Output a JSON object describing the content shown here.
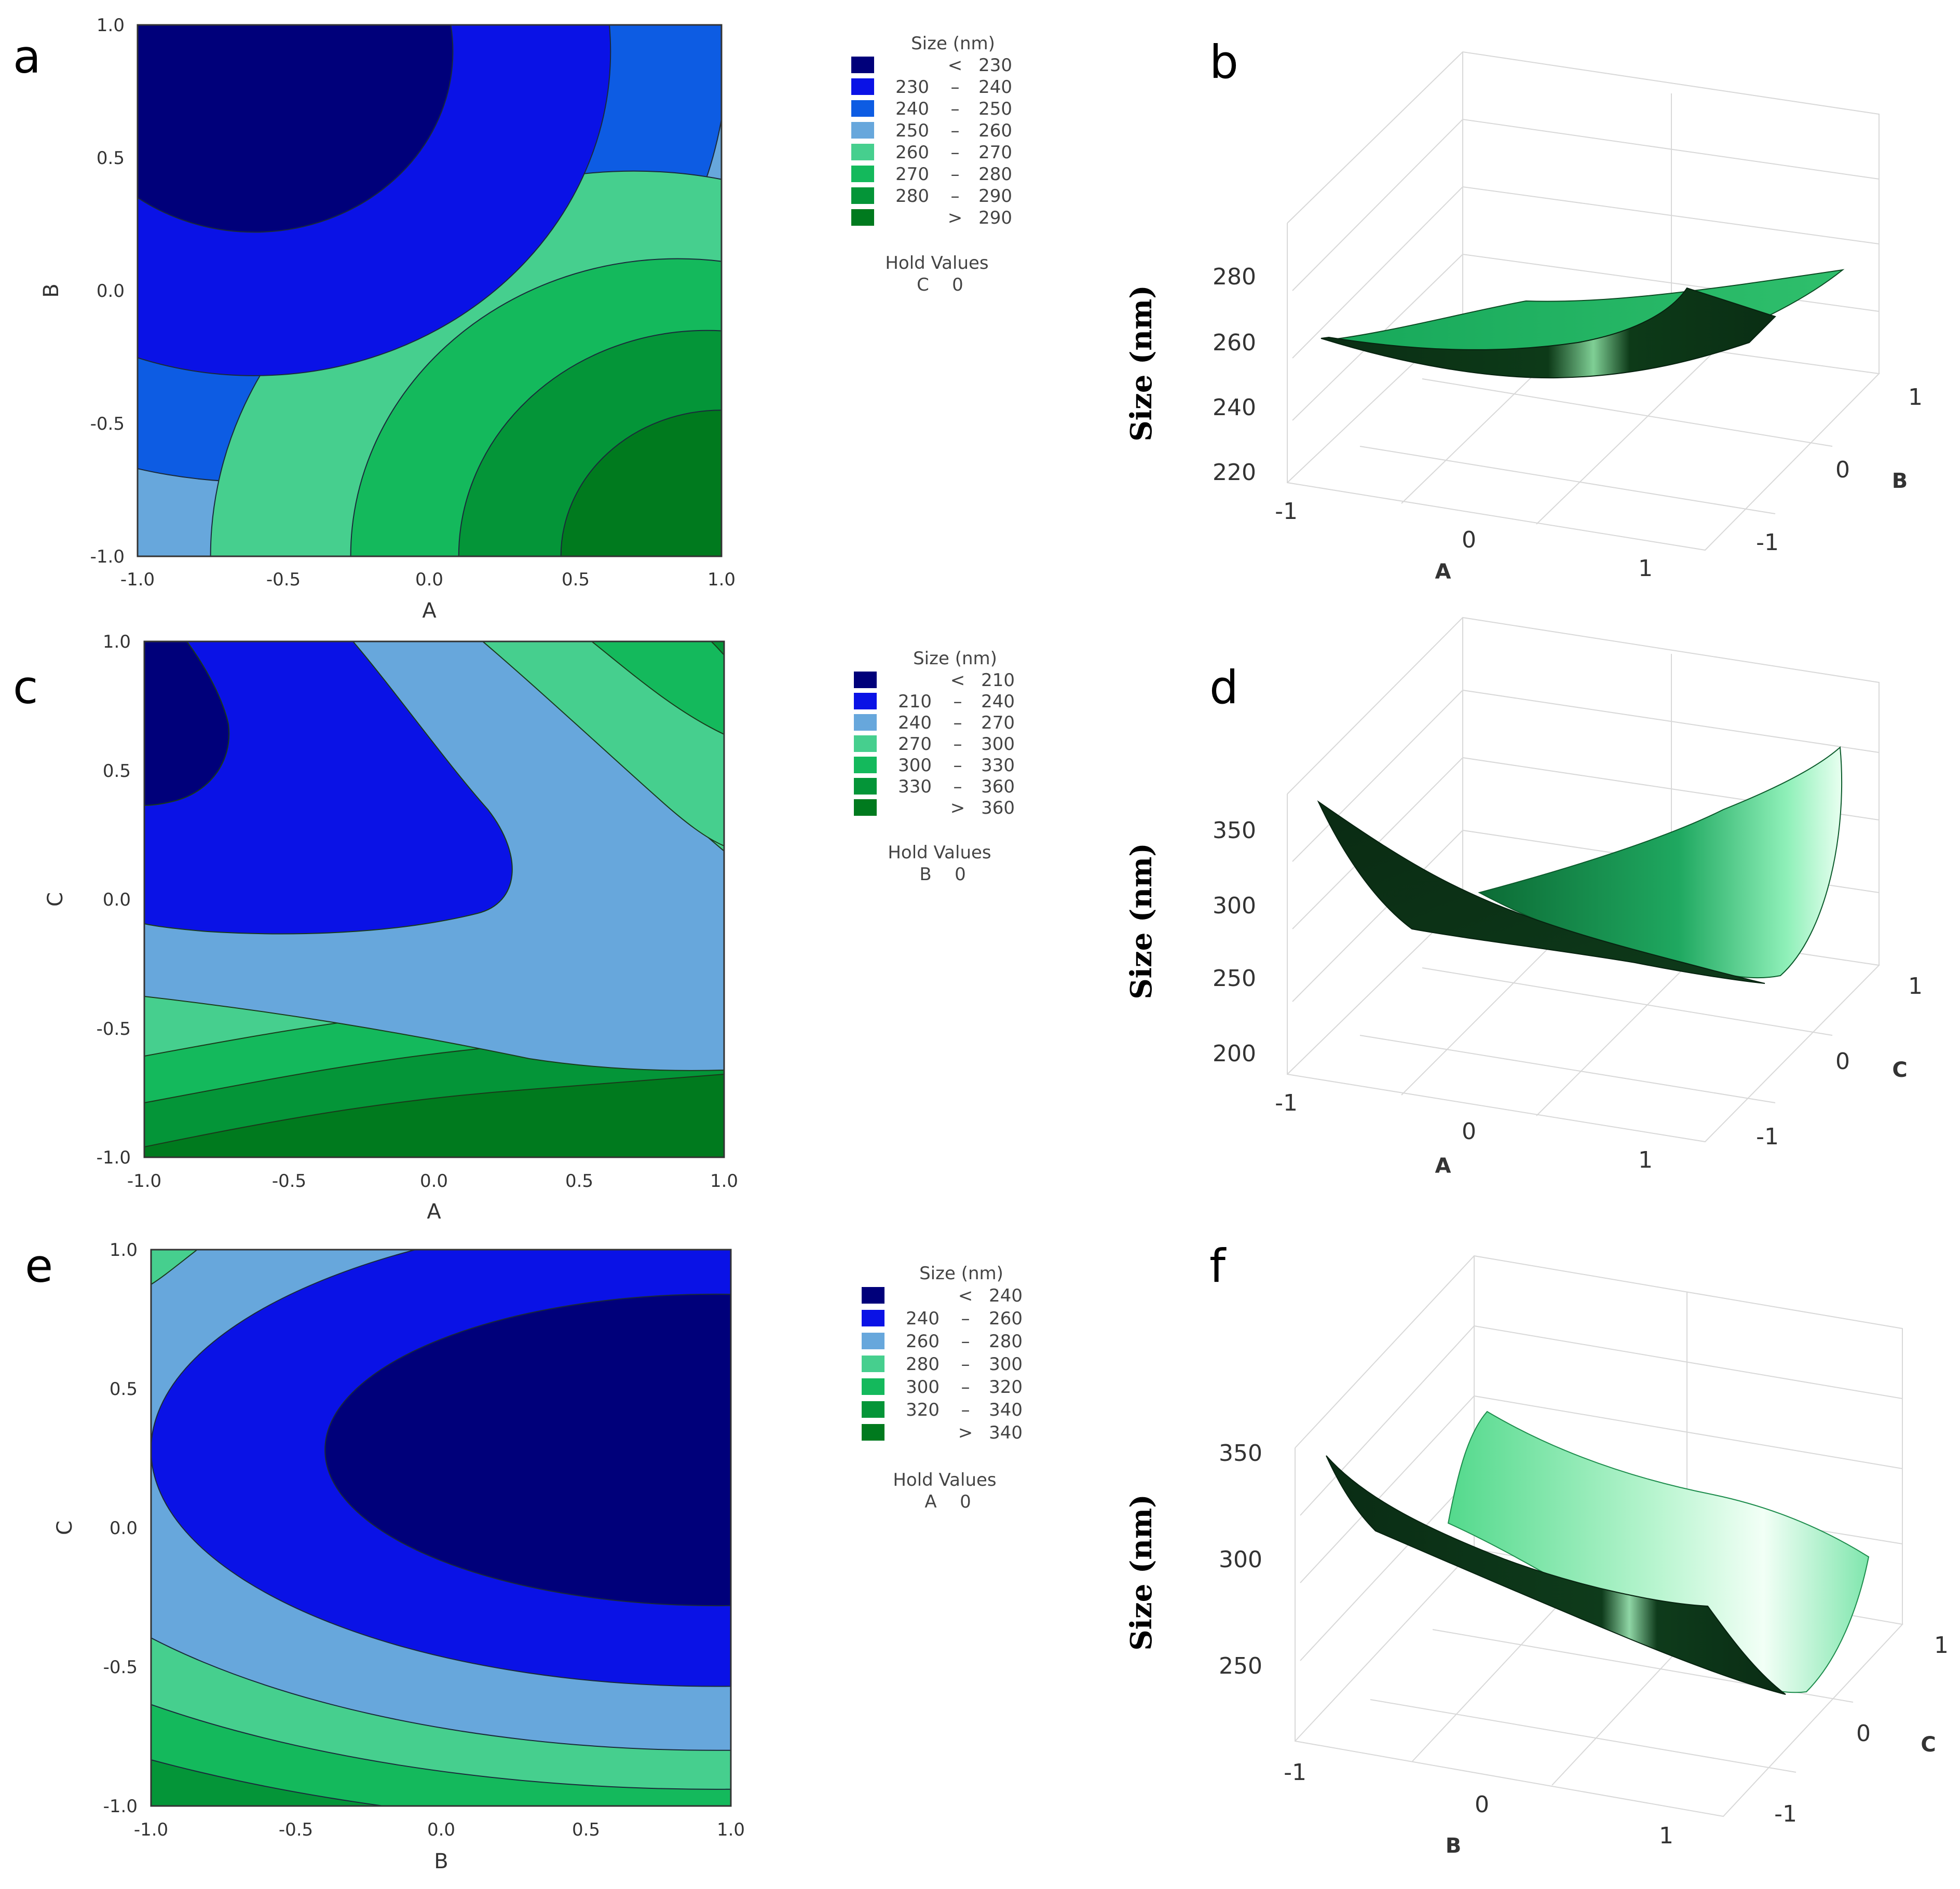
{
  "chart_data": [
    {
      "type": "contour",
      "panel": "a",
      "xlabel": "A",
      "ylabel": "B",
      "xlim": [
        -1.0,
        1.0
      ],
      "ylim": [
        -1.0,
        1.0
      ],
      "xticks": [
        "-1.0",
        "-0.5",
        "0.0",
        "0.5",
        "1.0"
      ],
      "yticks": [
        "-1.0",
        "-0.5",
        "0.0",
        "0.5",
        "1.0"
      ],
      "legend": {
        "title": "Size (nm)",
        "levels": [
          {
            "lo": "",
            "op": "<",
            "hi": "230",
            "color": "#00007a"
          },
          {
            "lo": "230",
            "op": "–",
            "hi": "240",
            "color": "#0a12e6"
          },
          {
            "lo": "240",
            "op": "–",
            "hi": "250",
            "color": "#0d5ce3"
          },
          {
            "lo": "250",
            "op": "–",
            "hi": "260",
            "color": "#67a7dc"
          },
          {
            "lo": "260",
            "op": "–",
            "hi": "270",
            "color": "#46cf8e"
          },
          {
            "lo": "270",
            "op": "–",
            "hi": "280",
            "color": "#14b95c"
          },
          {
            "lo": "280",
            "op": "–",
            "hi": "290",
            "color": "#049538"
          },
          {
            "lo": "",
            "op": ">",
            "hi": "290",
            "color": "#007a1e"
          }
        ],
        "hold_title": "Hold Values",
        "hold_var": "C",
        "hold_val": "0"
      },
      "regions": [
        {
          "level": 7,
          "cx": 1.0,
          "cy": -1.0,
          "r": 0.55
        },
        {
          "level": 6,
          "cx": 0.95,
          "cy": -1.0,
          "r": 0.85
        },
        {
          "level": 5,
          "cx": 0.85,
          "cy": -1.0,
          "r": 1.12
        },
        {
          "level": 4,
          "cx": 0.7,
          "cy": -1.0,
          "r": 1.45
        },
        {
          "level": 0,
          "cx": -0.6,
          "cy": 0.9,
          "r": 0.68
        },
        {
          "level": 1,
          "cx": -0.6,
          "cy": 0.9,
          "r": 1.22
        },
        {
          "level": 2,
          "cx": -0.6,
          "cy": 0.9,
          "r": 1.62
        },
        {
          "level": 3,
          "cx": -0.6,
          "cy": 0.9,
          "r": 2.05
        }
      ]
    },
    {
      "type": "surface3d",
      "panel": "b",
      "zlabel": "Size (nm)",
      "xlabel": "A",
      "ylabel": "B",
      "zticks": [
        "220",
        "240",
        "260",
        "280"
      ],
      "xticks": [
        "-1",
        "0",
        "1"
      ],
      "yticks": [
        "-1",
        "0",
        "1"
      ]
    },
    {
      "type": "contour",
      "panel": "c",
      "xlabel": "A",
      "ylabel": "C",
      "xlim": [
        -1.0,
        1.0
      ],
      "ylim": [
        -1.0,
        1.0
      ],
      "xticks": [
        "-1.0",
        "-0.5",
        "0.0",
        "0.5",
        "1.0"
      ],
      "yticks": [
        "-1.0",
        "-0.5",
        "0.0",
        "0.5",
        "1.0"
      ],
      "legend": {
        "title": "Size (nm)",
        "levels": [
          {
            "lo": "",
            "op": "<",
            "hi": "210",
            "color": "#00007a"
          },
          {
            "lo": "210",
            "op": "–",
            "hi": "240",
            "color": "#0a12e6"
          },
          {
            "lo": "240",
            "op": "–",
            "hi": "270",
            "color": "#67a7dc"
          },
          {
            "lo": "270",
            "op": "–",
            "hi": "300",
            "color": "#46cf8e"
          },
          {
            "lo": "300",
            "op": "–",
            "hi": "330",
            "color": "#14b95c"
          },
          {
            "lo": "330",
            "op": "–",
            "hi": "360",
            "color": "#049538"
          },
          {
            "lo": "",
            "op": ">",
            "hi": "360",
            "color": "#007a1e"
          }
        ],
        "hold_title": "Hold Values",
        "hold_var": "B",
        "hold_val": "0"
      }
    },
    {
      "type": "surface3d",
      "panel": "d",
      "zlabel": "Size (nm)",
      "xlabel": "A",
      "ylabel": "C",
      "zticks": [
        "200",
        "250",
        "300",
        "350"
      ],
      "xticks": [
        "-1",
        "0",
        "1"
      ],
      "yticks": [
        "-1",
        "0",
        "1"
      ]
    },
    {
      "type": "contour",
      "panel": "e",
      "xlabel": "B",
      "ylabel": "C",
      "xlim": [
        -1.0,
        1.0
      ],
      "ylim": [
        -1.0,
        1.0
      ],
      "xticks": [
        "-1.0",
        "-0.5",
        "0.0",
        "0.5",
        "1.0"
      ],
      "yticks": [
        "-1.0",
        "-0.5",
        "0.0",
        "0.5",
        "1.0"
      ],
      "legend": {
        "title": "Size (nm)",
        "levels": [
          {
            "lo": "",
            "op": "<",
            "hi": "240",
            "color": "#00007a"
          },
          {
            "lo": "240",
            "op": "–",
            "hi": "260",
            "color": "#0a12e6"
          },
          {
            "lo": "260",
            "op": "–",
            "hi": "280",
            "color": "#67a7dc"
          },
          {
            "lo": "280",
            "op": "–",
            "hi": "300",
            "color": "#46cf8e"
          },
          {
            "lo": "300",
            "op": "–",
            "hi": "320",
            "color": "#14b95c"
          },
          {
            "lo": "320",
            "op": "–",
            "hi": "340",
            "color": "#049538"
          },
          {
            "lo": "",
            "op": ">",
            "hi": "340",
            "color": "#007a1e"
          }
        ],
        "hold_title": "Hold Values",
        "hold_var": "A",
        "hold_val": "0"
      },
      "regions": [
        {
          "level": 0,
          "cx": 0.95,
          "cy": 0.28,
          "rx": 1.35,
          "ry": 0.56
        },
        {
          "level": 1,
          "cx": 0.95,
          "cy": 0.28,
          "rx": 1.95,
          "ry": 0.85
        },
        {
          "level": 2,
          "cx": 0.95,
          "cy": 0.28,
          "rx": 2.5,
          "ry": 1.08
        },
        {
          "level": 3,
          "cx": 0.95,
          "cy": 0.28,
          "rx": 2.95,
          "ry": 1.22
        },
        {
          "level": 4,
          "cx": 0.95,
          "cy": 0.28,
          "rx": 3.4,
          "ry": 1.36
        },
        {
          "level": 5,
          "cx": 0.95,
          "cy": 0.28,
          "rx": 3.9,
          "ry": 1.48
        }
      ]
    },
    {
      "type": "surface3d",
      "panel": "f",
      "zlabel": "Size (nm)",
      "xlabel": "B",
      "ylabel": "C",
      "zticks": [
        "250",
        "300",
        "350"
      ],
      "xticks": [
        "-1",
        "0",
        "1"
      ],
      "yticks": [
        "-1",
        "0",
        "1"
      ]
    }
  ]
}
